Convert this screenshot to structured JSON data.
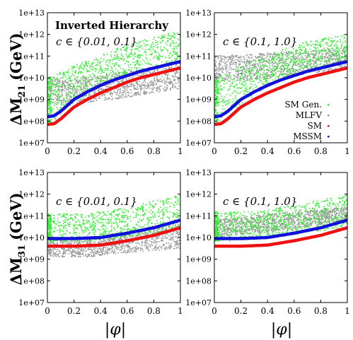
{
  "figure": {
    "annotation_title": "Inverted Hierarchy",
    "y_labels": {
      "row1": "ΔM",
      "row1_sub": "21",
      "row2": "ΔM",
      "row2_sub": "31",
      "unit": "(GeV)"
    },
    "x_label": "|φ|"
  },
  "colors": {
    "sm_gen": "#33ee33",
    "mlfv": "#999999",
    "sm": "#ee1111",
    "mssm": "#1111dd"
  },
  "legend": {
    "placement": "right-middle of top-right panel",
    "entries": [
      "SM Gen.",
      "MLFV",
      "SM",
      "MSSM"
    ]
  },
  "chart_data": [
    {
      "type": "scatter",
      "panel": "top-left",
      "annotation": "c ∈ {0.01, 0.1}",
      "ylabel": "ΔM21 (GeV)",
      "xlim": [
        0,
        1
      ],
      "ylim": [
        10000000.0,
        10000000000000.0
      ],
      "yscale": "log",
      "xticks": [
        "0",
        "0.2",
        "0.4",
        "0.6",
        "0.8",
        "1"
      ],
      "yticks": [
        "1e+07",
        "1e+08",
        "1e+09",
        "1e+10",
        "1e+11",
        "1e+12",
        "1e+13"
      ],
      "series": [
        {
          "name": "SM Gen.",
          "band_lower_log10": [
            [
              0,
              7.7
            ],
            [
              0.1,
              8.3
            ],
            [
              0.3,
              9.2
            ],
            [
              0.5,
              9.9
            ],
            [
              0.7,
              10.3
            ],
            [
              1,
              10.7
            ]
          ],
          "band_upper_log10": [
            [
              0,
              10.0
            ],
            [
              0.1,
              10.3
            ],
            [
              0.3,
              10.8
            ],
            [
              0.5,
              11.3
            ],
            [
              0.7,
              11.7
            ],
            [
              1,
              12.2
            ]
          ]
        },
        {
          "name": "MLFV",
          "band_lower_log10": [
            [
              0,
              8.8
            ],
            [
              0.2,
              8.8
            ],
            [
              0.5,
              9.0
            ],
            [
              0.7,
              9.2
            ],
            [
              1,
              9.5
            ]
          ],
          "band_upper_log10": [
            [
              0,
              10.0
            ],
            [
              0.2,
              10.0
            ],
            [
              0.5,
              10.2
            ],
            [
              0.7,
              10.4
            ],
            [
              1,
              10.7
            ]
          ]
        },
        {
          "name": "SM",
          "curve_log10": [
            [
              0,
              7.85
            ],
            [
              0.05,
              7.88
            ],
            [
              0.1,
              8.1
            ],
            [
              0.2,
              8.65
            ],
            [
              0.3,
              9.0
            ],
            [
              0.4,
              9.3
            ],
            [
              0.5,
              9.55
            ],
            [
              0.6,
              9.8
            ],
            [
              0.7,
              10.0
            ],
            [
              0.8,
              10.15
            ],
            [
              0.9,
              10.3
            ],
            [
              1,
              10.45
            ]
          ]
        },
        {
          "name": "MSSM",
          "curve_log10": [
            [
              0,
              8.2
            ],
            [
              0.05,
              8.25
            ],
            [
              0.1,
              8.45
            ],
            [
              0.2,
              9.0
            ],
            [
              0.3,
              9.35
            ],
            [
              0.4,
              9.65
            ],
            [
              0.5,
              9.9
            ],
            [
              0.6,
              10.1
            ],
            [
              0.7,
              10.3
            ],
            [
              0.8,
              10.45
            ],
            [
              0.9,
              10.6
            ],
            [
              1,
              10.75
            ]
          ]
        }
      ]
    },
    {
      "type": "scatter",
      "panel": "top-right",
      "annotation": "c ∈ {0.1, 1.0}",
      "xlim": [
        0,
        1
      ],
      "ylim": [
        10000000.0,
        10000000000000.0
      ],
      "yscale": "log",
      "xticks": [
        "0",
        "0.2",
        "0.4",
        "0.6",
        "0.8",
        "1"
      ],
      "yticks": [
        "1e+07",
        "1e+08",
        "1e+09",
        "1e+10",
        "1e+11",
        "1e+12",
        "1e+13"
      ],
      "series": [
        {
          "name": "SM Gen.",
          "band_lower_log10": [
            [
              0,
              7.7
            ],
            [
              0.1,
              8.3
            ],
            [
              0.3,
              9.2
            ],
            [
              0.5,
              9.9
            ],
            [
              0.7,
              10.3
            ],
            [
              1,
              10.7
            ]
          ],
          "band_upper_log10": [
            [
              0,
              10.0
            ],
            [
              0.1,
              10.3
            ],
            [
              0.3,
              10.8
            ],
            [
              0.5,
              11.3
            ],
            [
              0.7,
              11.7
            ],
            [
              1,
              12.0
            ]
          ]
        },
        {
          "name": "MLFV",
          "band_lower_log10": [
            [
              0,
              9.8
            ],
            [
              0.3,
              9.9
            ],
            [
              0.6,
              10.1
            ],
            [
              1,
              10.4
            ]
          ],
          "band_upper_log10": [
            [
              0,
              11.0
            ],
            [
              0.3,
              11.1
            ],
            [
              0.6,
              11.2
            ],
            [
              1,
              11.4
            ]
          ]
        },
        {
          "name": "SM",
          "curve_log10": [
            [
              0,
              7.85
            ],
            [
              0.05,
              7.88
            ],
            [
              0.1,
              8.1
            ],
            [
              0.2,
              8.65
            ],
            [
              0.3,
              9.0
            ],
            [
              0.4,
              9.3
            ],
            [
              0.5,
              9.55
            ],
            [
              0.6,
              9.8
            ],
            [
              0.7,
              10.0
            ],
            [
              0.8,
              10.15
            ],
            [
              0.9,
              10.3
            ],
            [
              1,
              10.45
            ]
          ]
        },
        {
          "name": "MSSM",
          "curve_log10": [
            [
              0,
              8.2
            ],
            [
              0.05,
              8.25
            ],
            [
              0.1,
              8.45
            ],
            [
              0.2,
              9.0
            ],
            [
              0.3,
              9.35
            ],
            [
              0.4,
              9.65
            ],
            [
              0.5,
              9.9
            ],
            [
              0.6,
              10.1
            ],
            [
              0.7,
              10.3
            ],
            [
              0.8,
              10.45
            ],
            [
              0.9,
              10.6
            ],
            [
              1,
              10.75
            ]
          ]
        }
      ]
    },
    {
      "type": "scatter",
      "panel": "bottom-left",
      "annotation": "c ∈ {0.01, 0.1}",
      "ylabel": "ΔM31 (GeV)",
      "xlabel": "|φ|",
      "xlim": [
        0,
        1
      ],
      "ylim": [
        10000000.0,
        10000000000000.0
      ],
      "yscale": "log",
      "xticks": [
        "0",
        "0.2",
        "0.4",
        "0.6",
        "0.8",
        "1"
      ],
      "yticks": [
        "1e+07",
        "1e+08",
        "1e+09",
        "1e+10",
        "1e+11",
        "1e+12",
        "1e+13"
      ],
      "series": [
        {
          "name": "SM Gen.",
          "band_lower_log10": [
            [
              0,
              9.8
            ],
            [
              0.3,
              9.8
            ],
            [
              0.6,
              10.0
            ],
            [
              1,
              10.4
            ]
          ],
          "band_upper_log10": [
            [
              0,
              11.1
            ],
            [
              0.3,
              11.1
            ],
            [
              0.6,
              11.4
            ],
            [
              1,
              12.0
            ]
          ]
        },
        {
          "name": "MLFV",
          "band_lower_log10": [
            [
              0,
              9.1
            ],
            [
              0.3,
              9.1
            ],
            [
              0.6,
              9.3
            ],
            [
              1,
              9.5
            ]
          ],
          "band_upper_log10": [
            [
              0,
              10.0
            ],
            [
              0.3,
              10.0
            ],
            [
              0.6,
              10.2
            ],
            [
              1,
              10.7
            ]
          ]
        },
        {
          "name": "SM",
          "curve_log10": [
            [
              0,
              9.6
            ],
            [
              0.2,
              9.6
            ],
            [
              0.4,
              9.65
            ],
            [
              0.6,
              9.85
            ],
            [
              0.8,
              10.1
            ],
            [
              1,
              10.45
            ]
          ]
        },
        {
          "name": "MSSM",
          "curve_log10": [
            [
              0,
              9.95
            ],
            [
              0.2,
              9.95
            ],
            [
              0.4,
              10.0
            ],
            [
              0.6,
              10.2
            ],
            [
              0.8,
              10.45
            ],
            [
              1,
              10.8
            ]
          ]
        }
      ]
    },
    {
      "type": "scatter",
      "panel": "bottom-right",
      "annotation": "c ∈ {0.1, 1.0}",
      "xlabel": "|φ|",
      "xlim": [
        0,
        1
      ],
      "ylim": [
        10000000.0,
        10000000000000.0
      ],
      "yscale": "log",
      "xticks": [
        "0",
        "0.2",
        "0.4",
        "0.6",
        "0.8",
        "1"
      ],
      "yticks": [
        "1e+07",
        "1e+08",
        "1e+09",
        "1e+10",
        "1e+11",
        "1e+12",
        "1e+13"
      ],
      "series": [
        {
          "name": "SM Gen.",
          "band_lower_log10": [
            [
              0,
              9.8
            ],
            [
              0.3,
              9.9
            ],
            [
              0.6,
              10.1
            ],
            [
              1,
              10.5
            ]
          ],
          "band_upper_log10": [
            [
              0,
              11.2
            ],
            [
              0.3,
              11.2
            ],
            [
              0.6,
              11.5
            ],
            [
              1,
              12.0
            ]
          ]
        },
        {
          "name": "MLFV",
          "band_lower_log10": [
            [
              0,
              10.0
            ],
            [
              0.3,
              10.2
            ],
            [
              0.6,
              10.4
            ],
            [
              1,
              10.8
            ]
          ],
          "band_upper_log10": [
            [
              0,
              10.8
            ],
            [
              0.3,
              11.0
            ],
            [
              0.6,
              11.2
            ],
            [
              1,
              11.4
            ]
          ]
        },
        {
          "name": "SM",
          "curve_log10": [
            [
              0,
              9.6
            ],
            [
              0.2,
              9.6
            ],
            [
              0.4,
              9.65
            ],
            [
              0.6,
              9.85
            ],
            [
              0.8,
              10.1
            ],
            [
              1,
              10.45
            ]
          ]
        },
        {
          "name": "MSSM",
          "curve_log10": [
            [
              0,
              9.95
            ],
            [
              0.2,
              9.95
            ],
            [
              0.4,
              10.0
            ],
            [
              0.6,
              10.2
            ],
            [
              0.8,
              10.45
            ],
            [
              1,
              10.8
            ]
          ]
        }
      ]
    }
  ]
}
